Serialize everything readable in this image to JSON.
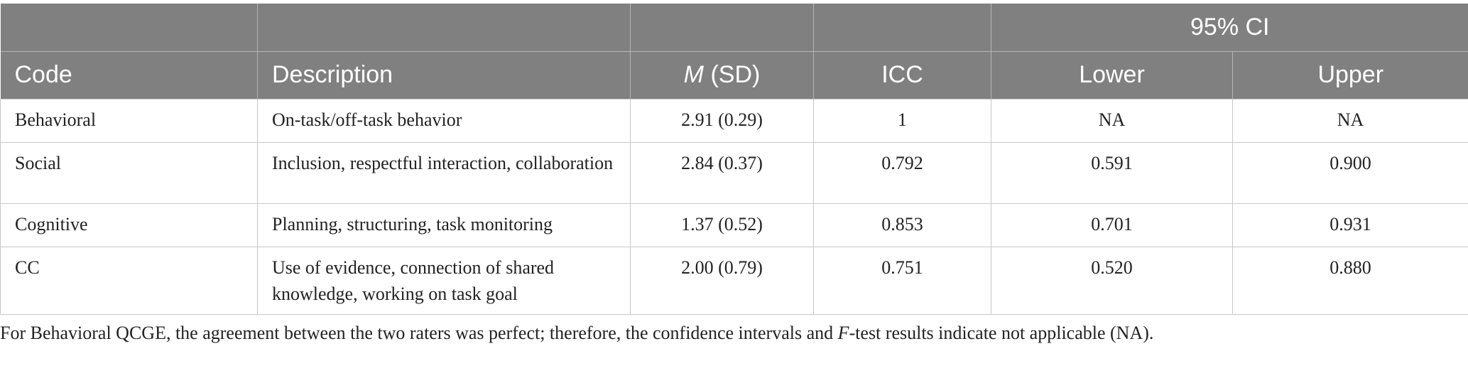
{
  "header": {
    "group_label": "95% CI",
    "columns": {
      "code": "Code",
      "description": "Description",
      "m_italic": "M",
      "m_rest": " (SD)",
      "icc": "ICC",
      "lower": "Lower",
      "upper": "Upper"
    }
  },
  "rows": [
    {
      "code": "Behavioral",
      "description": "On-task/off-task behavior",
      "msd": "2.91 (0.29)",
      "icc": "1",
      "lower": "NA",
      "upper": "NA"
    },
    {
      "code": "Social",
      "description": "Inclusion, respectful interaction, collaboration",
      "msd": "2.84 (0.37)",
      "icc": "0.792",
      "lower": "0.591",
      "upper": "0.900"
    },
    {
      "code": "Cognitive",
      "description": "Planning, structuring, task monitoring",
      "msd": "1.37 (0.52)",
      "icc": "0.853",
      "lower": "0.701",
      "upper": "0.931"
    },
    {
      "code": "CC",
      "description": "Use of evidence, connection of shared knowledge, working on task goal",
      "msd": "2.00 (0.79)",
      "icc": "0.751",
      "lower": "0.520",
      "upper": "0.880"
    }
  ],
  "footnote": {
    "part1": "For Behavioral QCGE, the agreement between the two raters was perfect; therefore, the confidence intervals and ",
    "italic": "F",
    "part2": "-test results indicate not applicable (NA)."
  }
}
